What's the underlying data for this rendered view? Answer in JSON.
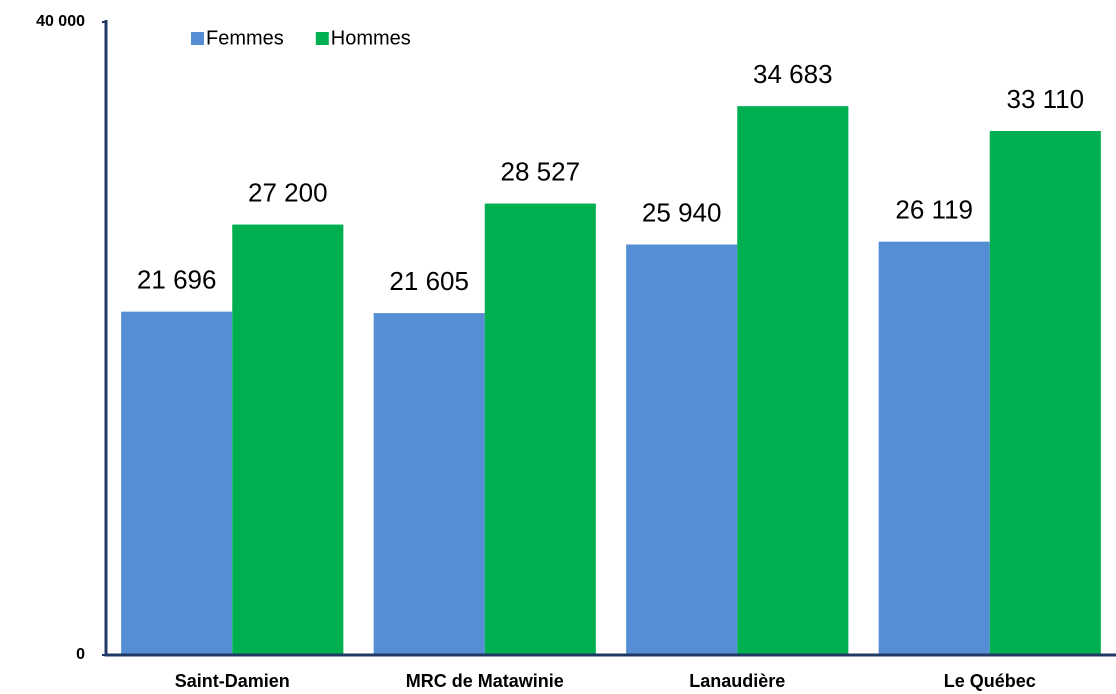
{
  "chart_data": {
    "type": "bar",
    "categories": [
      "Saint-Damien",
      "MRC de Matawinie",
      "Lanaudière",
      "Le Québec"
    ],
    "series": [
      {
        "name": "Femmes",
        "color": "#558ed5",
        "values": [
          21696,
          21605,
          25940,
          26119
        ],
        "value_labels": [
          "21 696",
          "21 605",
          "25 940",
          "26 119"
        ]
      },
      {
        "name": "Hommes",
        "color": "#00b050",
        "values": [
          27200,
          28527,
          34683,
          33110
        ],
        "value_labels": [
          "27 200",
          "28 527",
          "34 683",
          "33 110"
        ]
      }
    ],
    "ylim": [
      0,
      40000
    ],
    "yticks": [
      0,
      {
        "value": 40000,
        "label": "40 000"
      }
    ],
    "grid": false,
    "legend": "top"
  }
}
